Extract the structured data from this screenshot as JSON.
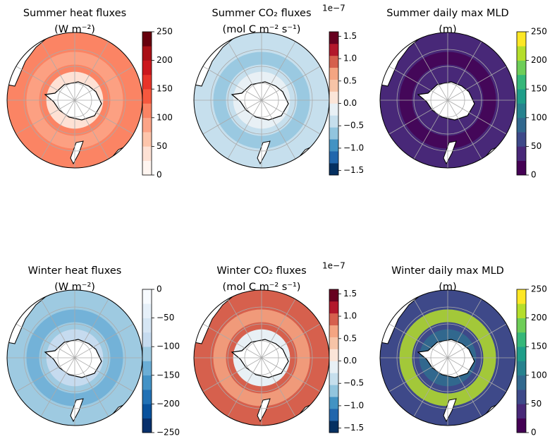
{
  "panels": [
    {
      "title": [
        "Summer heat fluxes",
        "(W m⁻²)"
      ],
      "colorbar": {
        "lim": [
          0,
          250
        ],
        "ticks": [
          0,
          50,
          100,
          150,
          200,
          250
        ],
        "colors": [
          "#fff5f0",
          "#fee1d4",
          "#fdc5ab",
          "#fca487",
          "#fb8464",
          "#f6583e",
          "#e83429",
          "#cb181d",
          "#a91016",
          "#67000d"
        ]
      }
    },
    {
      "title": [
        "Summer CO₂ fluxes",
        "(mol C m⁻² s⁻¹)"
      ],
      "offset_label": "1e−7",
      "colorbar": {
        "lim": [
          -1.6,
          1.6
        ],
        "ticks": [
          {
            "value": -1.5,
            "label": "−1.5"
          },
          {
            "value": -1.0,
            "label": "−1.0"
          },
          {
            "value": -0.5,
            "label": "−0.5"
          },
          {
            "value": 0,
            "label": "0.0"
          },
          0.5,
          {
            "value": 1.0,
            "label": "1.0"
          },
          1.5
        ],
        "colors": [
          "#053061",
          "#2166ac",
          "#4393c3",
          "#92c5de",
          "#c6dfed",
          "#e8f0f5",
          "#fbe5d8",
          "#f7c4a7",
          "#f4a582",
          "#d6604d",
          "#b2182b",
          "#67001f"
        ]
      }
    },
    {
      "title": [
        "Summer daily max MLD",
        "(m)"
      ],
      "colorbar": {
        "lim": [
          0,
          250
        ],
        "ticks": [
          0,
          50,
          100,
          150,
          200,
          250
        ],
        "colors": [
          "#440154",
          "#482878",
          "#3e4989",
          "#31688e",
          "#26828e",
          "#1f9e89",
          "#35b779",
          "#6ece58",
          "#b5de2b",
          "#fde725"
        ]
      }
    },
    {
      "title": [
        "Winter heat fluxes",
        "(W m⁻²)"
      ],
      "colorbar": {
        "lim": [
          -250,
          0
        ],
        "ticks": [
          {
            "value": -250,
            "label": "−250"
          },
          {
            "value": -200,
            "label": "−200"
          },
          {
            "value": -150,
            "label": "−150"
          },
          {
            "value": -100,
            "label": "−100"
          },
          {
            "value": -50,
            "label": "−50"
          },
          0
        ],
        "colors": [
          "#08306b",
          "#08519c",
          "#2171b5",
          "#4292c6",
          "#6baed6",
          "#9ecae1",
          "#c6dbef",
          "#d6e6f4",
          "#e6f0f9",
          "#f7fbff"
        ]
      }
    },
    {
      "title": [
        "Winter CO₂ fluxes",
        "(mol C m⁻² s⁻¹)"
      ],
      "offset_label": "1e−7",
      "colorbar": {
        "lim": [
          -1.6,
          1.6
        ],
        "ticks": [
          {
            "value": -1.5,
            "label": "−1.5"
          },
          {
            "value": -1.0,
            "label": "−1.0"
          },
          {
            "value": -0.5,
            "label": "−0.5"
          },
          {
            "value": 0,
            "label": "0.0"
          },
          0.5,
          {
            "value": 1.0,
            "label": "1.0"
          },
          1.5
        ],
        "colors": [
          "#053061",
          "#2166ac",
          "#4393c3",
          "#92c5de",
          "#c6dfed",
          "#e8f0f5",
          "#fbe5d8",
          "#f7c4a7",
          "#f4a582",
          "#d6604d",
          "#b2182b",
          "#67001f"
        ]
      }
    },
    {
      "title": [
        "Winter daily max MLD",
        "(m)"
      ],
      "colorbar": {
        "lim": [
          0,
          250
        ],
        "ticks": [
          0,
          50,
          100,
          150,
          200,
          250
        ],
        "colors": [
          "#440154",
          "#482878",
          "#3e4989",
          "#31688e",
          "#26828e",
          "#1f9e89",
          "#35b779",
          "#6ece58",
          "#b5de2b",
          "#fde725"
        ]
      }
    }
  ]
}
